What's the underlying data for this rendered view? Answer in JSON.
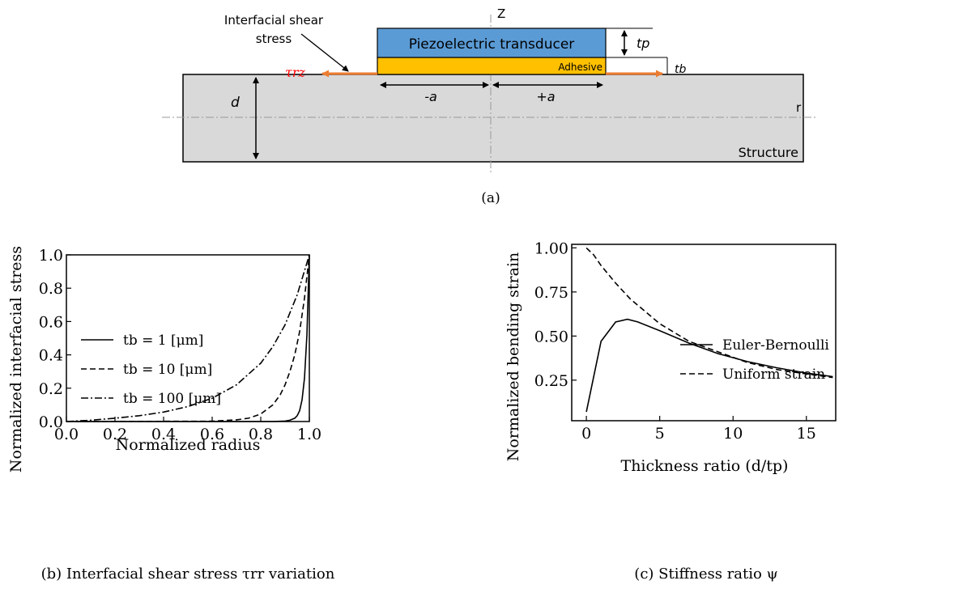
{
  "diagram": {
    "z_label": "Z",
    "r_label": "r",
    "transducer_label": "Piezoelectric transducer",
    "adhesive_label": "Adhesive",
    "structure_label": "Structure",
    "shear_label_line1": "Interfacial shear",
    "shear_label_line2": "stress",
    "tau_label": "τrz",
    "tp_label": "tp",
    "tb_label": "tb",
    "d_label": "d",
    "minus_a_label": "-a",
    "plus_a_label": "+a",
    "caption": "(a)",
    "colors": {
      "transducer": "#5b9bd5",
      "adhesive": "#ffc000",
      "structure": "#d9d9d9",
      "arrow": "#ed7d31",
      "tau": "#ff0000"
    }
  },
  "chart_data": [
    {
      "type": "line",
      "caption": "(b) Interfacial shear stress τrr variation",
      "xlabel": "Normalized radius",
      "ylabel": "Normalized interfacial stress",
      "xlim": [
        0,
        1
      ],
      "ylim": [
        0,
        1
      ],
      "xticks": [
        "0.0",
        "0.2",
        "0.4",
        "0.6",
        "0.8",
        "1.0"
      ],
      "yticks": [
        "0.0",
        "0.2",
        "0.4",
        "0.6",
        "0.8",
        "1.0"
      ],
      "legend": "center-left",
      "series": [
        {
          "name": "tb = 1 [μm]",
          "style": "solid",
          "x": [
            0,
            0.85,
            0.9,
            0.92,
            0.94,
            0.95,
            0.96,
            0.97,
            0.98,
            0.99,
            1.0
          ],
          "y": [
            0,
            0,
            0.003,
            0.008,
            0.02,
            0.035,
            0.065,
            0.13,
            0.26,
            0.52,
            1.0
          ]
        },
        {
          "name": "tb = 10 [μm]",
          "style": "dashed",
          "x": [
            0,
            0.6,
            0.7,
            0.75,
            0.8,
            0.85,
            0.88,
            0.9,
            0.92,
            0.94,
            0.96,
            0.98,
            1.0
          ],
          "y": [
            0,
            0.002,
            0.01,
            0.02,
            0.045,
            0.1,
            0.16,
            0.22,
            0.3,
            0.4,
            0.54,
            0.74,
            1.0
          ]
        },
        {
          "name": "tb = 100 [μm]",
          "style": "dashdot",
          "x": [
            0,
            0.1,
            0.2,
            0.3,
            0.4,
            0.5,
            0.6,
            0.7,
            0.8,
            0.85,
            0.9,
            0.95,
            1.0
          ],
          "y": [
            0,
            0.008,
            0.02,
            0.035,
            0.057,
            0.09,
            0.14,
            0.22,
            0.35,
            0.45,
            0.58,
            0.76,
            1.0
          ]
        }
      ]
    },
    {
      "type": "line",
      "caption": "(c) Stiffness ratio ψ",
      "xlabel": "Thickness ratio (d/tp)",
      "ylabel": "Normalized bending strain",
      "xlim": [
        -1,
        17
      ],
      "ylim": [
        0.02,
        1.02
      ],
      "xticks": [
        "0",
        "5",
        "10",
        "15"
      ],
      "yticks": [
        "0.25",
        "0.50",
        "0.75",
        "1.00"
      ],
      "legend": "center-right",
      "series": [
        {
          "name": "Euler-Bernoulli",
          "style": "solid",
          "x": [
            0,
            1,
            2,
            2.8,
            3.5,
            5,
            7,
            9,
            11,
            13,
            15,
            16.8
          ],
          "y": [
            0.07,
            0.47,
            0.58,
            0.595,
            0.58,
            0.53,
            0.46,
            0.4,
            0.355,
            0.32,
            0.29,
            0.27
          ]
        },
        {
          "name": "Uniform strain",
          "style": "dashed",
          "x": [
            0,
            0.5,
            1,
            2,
            3,
            4,
            5,
            6,
            7,
            9,
            11,
            13,
            15,
            16.8
          ],
          "y": [
            1.0,
            0.96,
            0.9,
            0.8,
            0.71,
            0.64,
            0.57,
            0.52,
            0.47,
            0.41,
            0.35,
            0.31,
            0.285,
            0.265
          ]
        }
      ]
    }
  ]
}
